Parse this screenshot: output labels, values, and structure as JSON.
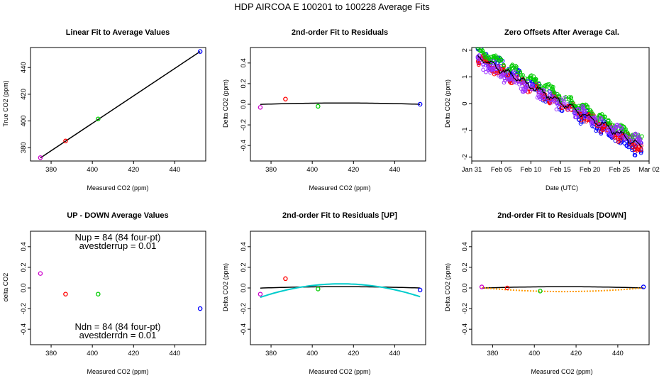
{
  "figure_title": "HDP    AIRCOA E    100201 to 100228    Average Fits",
  "colors": {
    "blue": "#0000ff",
    "red": "#ff0000",
    "green": "#00cc00",
    "magenta": "#cc00cc",
    "purple": "#9b30ff",
    "black": "#000000",
    "cyan": "#00cccc",
    "orange": "#ff9900"
  },
  "chart_data": [
    {
      "id": "p1",
      "type": "scatter",
      "title": "Linear Fit to Average Values",
      "xlabel": "Measured CO2 (ppm)",
      "ylabel": "True CO2 (ppm)",
      "xlim": [
        370,
        455
      ],
      "ylim": [
        370,
        455
      ],
      "xticks": [
        "380",
        "400",
        "420",
        "440"
      ],
      "yticks": [
        "380",
        "400",
        "420",
        "440"
      ],
      "points": [
        {
          "x": 374.8,
          "y": 372.5,
          "color": "magenta"
        },
        {
          "x": 387.0,
          "y": 385.0,
          "color": "red"
        },
        {
          "x": 402.8,
          "y": 401.5,
          "color": "green"
        },
        {
          "x": 452.3,
          "y": 452.0,
          "color": "blue"
        }
      ],
      "fit_line": {
        "x1": 374.8,
        "y1": 372.3,
        "x2": 452.3,
        "y2": 452.0
      }
    },
    {
      "id": "p2",
      "type": "scatter",
      "title": "2nd-order Fit to Residuals",
      "xlabel": "Measured CO2 (ppm)",
      "ylabel": "Delta CO2 (ppm)",
      "xlim": [
        370,
        455
      ],
      "ylim": [
        -0.55,
        0.55
      ],
      "xticks": [
        "380",
        "400",
        "420",
        "440"
      ],
      "yticks": [
        "-0.4",
        "-0.2",
        "0.0",
        "0.2",
        "0.4"
      ],
      "points": [
        {
          "x": 374.8,
          "y": -0.03,
          "color": "magenta"
        },
        {
          "x": 387.0,
          "y": 0.05,
          "color": "red"
        },
        {
          "x": 402.8,
          "y": -0.02,
          "color": "green"
        },
        {
          "x": 452.3,
          "y": 0.0,
          "color": "blue"
        }
      ],
      "fit_curve": {
        "a": -8.5e-06,
        "x0": 414,
        "b": 0.012,
        "color": "black"
      }
    },
    {
      "id": "p3",
      "type": "scatter",
      "title": "Zero Offsets After Average Cal.",
      "xlabel": "Date (UTC)",
      "ylabel": "Delta CO2 (ppm)",
      "xlim": [
        0,
        30
      ],
      "ylim": [
        -2.15,
        2.1
      ],
      "xticks": [
        "Jan 31",
        "Feb 05",
        "Feb 10",
        "Feb 15",
        "Feb 20",
        "Feb 25",
        "Mar 02"
      ],
      "xtick_values": [
        0,
        5,
        10,
        15,
        20,
        25,
        30
      ],
      "yticks": [
        "-2",
        "-1",
        "0",
        "1",
        "2"
      ],
      "series": [
        {
          "name": "blue",
          "color": "blue",
          "t_range": [
            1.0,
            28.8
          ],
          "start": 1.9,
          "end": -1.8,
          "spread": 0.22
        },
        {
          "name": "red",
          "color": "red",
          "t_range": [
            1.0,
            28.8
          ],
          "start": 1.7,
          "end": -1.65,
          "spread": 0.15
        },
        {
          "name": "green",
          "color": "green",
          "t_range": [
            1.0,
            28.8
          ],
          "start": 2.0,
          "end": -1.4,
          "spread": 0.12
        },
        {
          "name": "purple",
          "color": "purple",
          "t_range": [
            1.0,
            28.8
          ],
          "start": 1.6,
          "end": -1.55,
          "spread": 0.2
        },
        {
          "name": "mean",
          "color": "black",
          "t_range": [
            1.0,
            28.8
          ],
          "start": 1.75,
          "end": -1.6,
          "spread": 0.06
        }
      ]
    },
    {
      "id": "p4",
      "type": "scatter",
      "title": "UP - DOWN Average Values",
      "xlabel": "Measured CO2 (ppm)",
      "ylabel": "delta CO2",
      "xlim": [
        370,
        455
      ],
      "ylim": [
        -0.55,
        0.55
      ],
      "xticks": [
        "380",
        "400",
        "420",
        "440"
      ],
      "yticks": [
        "-0.4",
        "-0.2",
        "0.0",
        "0.2",
        "0.4"
      ],
      "points": [
        {
          "x": 374.8,
          "y": 0.14,
          "color": "magenta"
        },
        {
          "x": 387.0,
          "y": -0.06,
          "color": "red"
        },
        {
          "x": 402.8,
          "y": -0.06,
          "color": "green"
        },
        {
          "x": 452.3,
          "y": -0.2,
          "color": "blue"
        }
      ],
      "annotations": {
        "nup": "Nup = 84 (84 four-pt)",
        "avestderrup": "avestderrup =  0.01",
        "ndn": "Ndn = 84 (84 four-pt)",
        "avestderrdn": "avestderrdn =  0.01"
      }
    },
    {
      "id": "p5",
      "type": "scatter",
      "title": "2nd-order Fit to Residuals [UP]",
      "xlabel": "Measured CO2 (ppm)",
      "ylabel": "Delta CO2 (ppm)",
      "xlim": [
        370,
        455
      ],
      "ylim": [
        -0.55,
        0.55
      ],
      "xticks": [
        "380",
        "400",
        "420",
        "440"
      ],
      "yticks": [
        "-0.4",
        "-0.2",
        "0.0",
        "0.2",
        "0.4"
      ],
      "points": [
        {
          "x": 374.8,
          "y": -0.06,
          "color": "magenta"
        },
        {
          "x": 387.0,
          "y": 0.09,
          "color": "red"
        },
        {
          "x": 402.8,
          "y": -0.01,
          "color": "green"
        },
        {
          "x": 452.3,
          "y": -0.02,
          "color": "blue"
        }
      ],
      "fit_curve": {
        "a": -8.5e-05,
        "x0": 414,
        "b": 0.04,
        "color": "cyan"
      },
      "ref_curve": {
        "a": -8.5e-06,
        "x0": 414,
        "b": 0.012,
        "color": "black"
      }
    },
    {
      "id": "p6",
      "type": "scatter",
      "title": "2nd-order Fit to Residuals [DOWN]",
      "xlabel": "Measured CO2 (ppm)",
      "ylabel": "Delta CO2 (ppm)",
      "xlim": [
        370,
        455
      ],
      "ylim": [
        -0.55,
        0.55
      ],
      "xticks": [
        "380",
        "400",
        "420",
        "440"
      ],
      "yticks": [
        "-0.4",
        "-0.2",
        "0.0",
        "0.2",
        "0.4"
      ],
      "points": [
        {
          "x": 374.8,
          "y": 0.01,
          "color": "magenta"
        },
        {
          "x": 387.0,
          "y": 0.0,
          "color": "red"
        },
        {
          "x": 402.8,
          "y": -0.03,
          "color": "green"
        },
        {
          "x": 452.3,
          "y": 0.01,
          "color": "blue"
        }
      ],
      "fit_curve": {
        "a": 2.45e-05,
        "x0": 414,
        "b": -0.035,
        "color": "orange",
        "dashed": true
      },
      "ref_curve": {
        "a": -8.5e-06,
        "x0": 414,
        "b": 0.012,
        "color": "black"
      }
    }
  ]
}
